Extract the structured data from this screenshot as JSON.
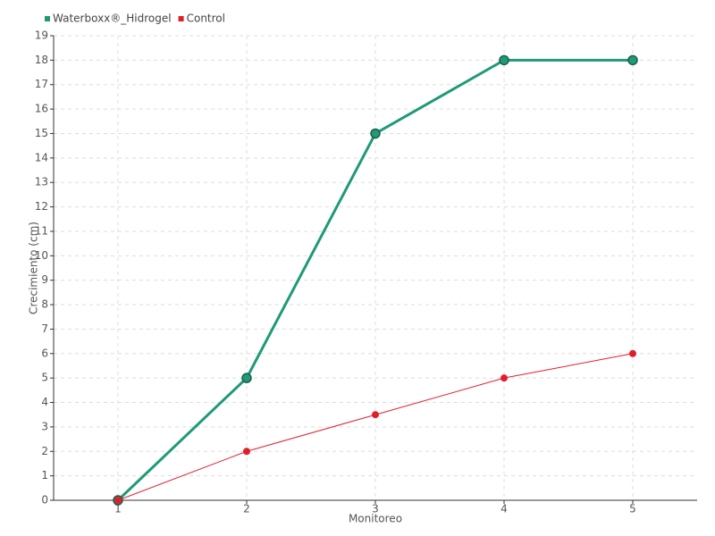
{
  "chart_data": {
    "type": "line",
    "x_label": "Monitoreo",
    "y_label": "Crecimiento (cm)",
    "categories": [
      "1",
      "2",
      "3",
      "4",
      "5"
    ],
    "series": [
      {
        "name": "Waterboxx®_Hidrogel",
        "color": "#1f9a78",
        "values": [
          0,
          5,
          15,
          18,
          18
        ]
      },
      {
        "name": "Control",
        "color": "#e31e2b",
        "values": [
          0,
          2,
          3.5,
          5,
          6
        ]
      }
    ],
    "ylim": [
      0,
      19
    ],
    "yticks": [
      0,
      1,
      2,
      3,
      4,
      5,
      6,
      7,
      8,
      9,
      10,
      11,
      12,
      13,
      14,
      15,
      16,
      17,
      18,
      19
    ],
    "grid": true,
    "legend": "top-left"
  }
}
